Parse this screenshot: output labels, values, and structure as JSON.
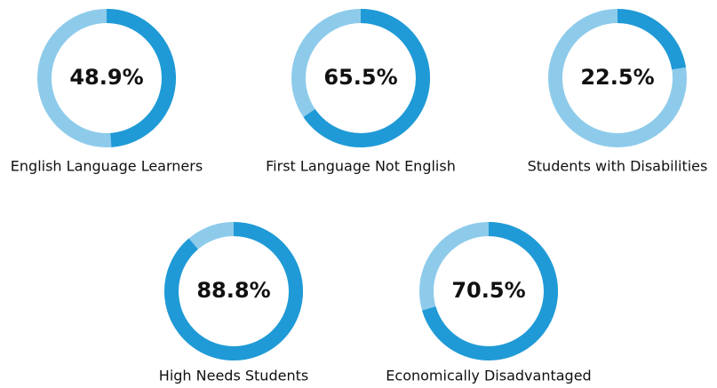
{
  "chart_data": [
    {
      "type": "donut",
      "title": "English Language Learners",
      "values": [
        48.9
      ],
      "value_labels": [
        "48.9%"
      ],
      "color": "#1f9ad6",
      "track_color": "#8ecbeb"
    },
    {
      "type": "donut",
      "title": "First Language Not English",
      "values": [
        65.5
      ],
      "value_labels": [
        "65.5%"
      ],
      "color": "#1f9ad6",
      "track_color": "#8ecbeb"
    },
    {
      "type": "donut",
      "title": "Students with Disabilities",
      "values": [
        22.5
      ],
      "value_labels": [
        "22.5%"
      ],
      "color": "#1f9ad6",
      "track_color": "#8ecbeb"
    },
    {
      "type": "donut",
      "title": "High Needs Students",
      "values": [
        88.8
      ],
      "value_labels": [
        "88.8%"
      ],
      "color": "#1f9ad6",
      "track_color": "#8ecbeb"
    },
    {
      "type": "donut",
      "title": "Economically Disadvantaged",
      "values": [
        70.5
      ],
      "value_labels": [
        "70.5%"
      ],
      "color": "#1f9ad6",
      "track_color": "#8ecbeb"
    }
  ]
}
